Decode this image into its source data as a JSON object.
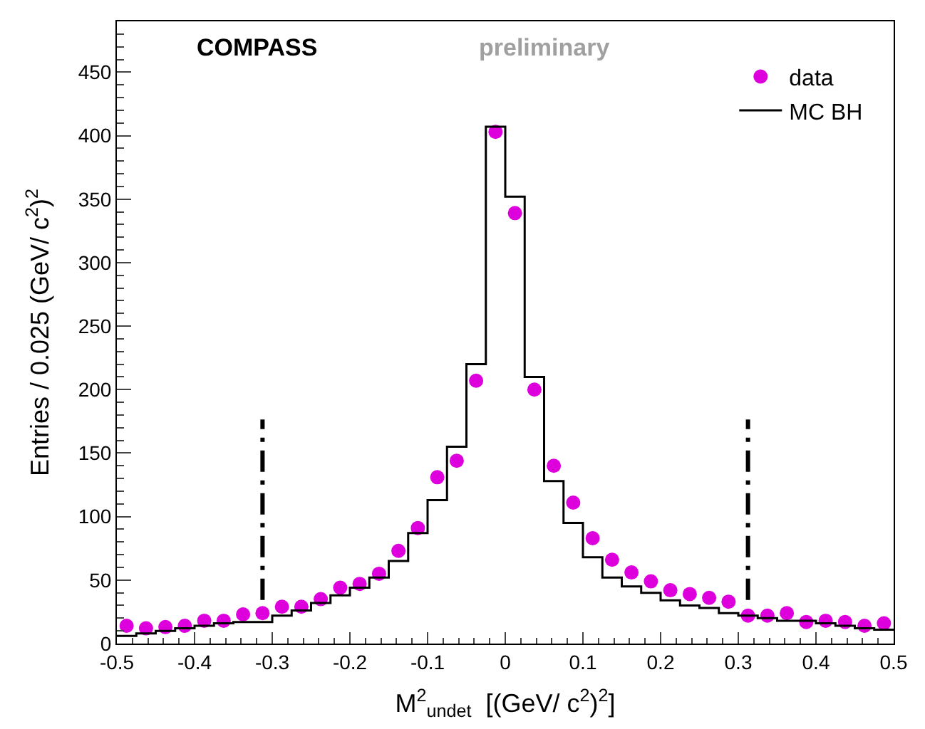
{
  "chart_data": {
    "type": "histogram",
    "xlabel": "M$^{2}$$_{undet}$  [(GeV/ c$^{2}$)$^{2}$]",
    "ylabel": "Entries / 0.025 (GeV/ c$^{2}$)$^{2}$",
    "annotations": [
      "COMPASS",
      "preliminary"
    ],
    "bins": [
      -0.5,
      -0.475,
      -0.45,
      -0.425,
      -0.4,
      -0.375,
      -0.35,
      -0.325,
      -0.3,
      -0.275,
      -0.25,
      -0.225,
      -0.2,
      -0.175,
      -0.15,
      -0.125,
      -0.1,
      -0.075,
      -0.05,
      -0.025,
      0,
      0.025,
      0.05,
      0.075,
      0.1,
      0.125,
      0.15,
      0.175,
      0.2,
      0.225,
      0.25,
      0.275,
      0.3,
      0.325,
      0.35,
      0.375,
      0.4,
      0.425,
      0.45,
      0.475,
      0.5
    ],
    "series": [
      {
        "name": "data",
        "type": "scatter",
        "color": "#dd00dd",
        "marker": "circle",
        "x": [
          -0.4875,
          -0.4625,
          -0.4375,
          -0.4125,
          -0.3875,
          -0.3625,
          -0.3375,
          -0.3125,
          -0.2875,
          -0.2625,
          -0.2375,
          -0.2125,
          -0.1875,
          -0.1625,
          -0.1375,
          -0.1125,
          -0.0875,
          -0.0625,
          -0.0375,
          -0.0125,
          0.0125,
          0.0375,
          0.0625,
          0.0875,
          0.1125,
          0.1375,
          0.1625,
          0.1875,
          0.2125,
          0.2375,
          0.2625,
          0.2875,
          0.3125,
          0.3375,
          0.3625,
          0.3875,
          0.4125,
          0.4375,
          0.4625,
          0.4875
        ],
        "values": [
          14,
          12,
          13,
          14,
          18,
          18,
          23,
          24,
          29,
          29,
          35,
          44,
          47,
          55,
          73,
          91,
          131,
          144,
          207,
          403,
          339,
          200,
          140,
          111,
          83,
          66,
          56,
          49,
          42,
          39,
          36,
          33,
          22,
          22,
          24,
          17,
          18,
          17,
          14,
          16
        ]
      },
      {
        "name": "MC BH",
        "color": "#000000",
        "values": [
          6,
          8,
          10,
          12,
          14,
          16,
          17,
          17,
          22,
          26,
          32,
          38,
          44,
          52,
          65,
          87,
          113,
          155,
          220,
          407,
          352,
          210,
          128,
          95,
          68,
          52,
          45,
          40,
          34,
          30,
          28,
          24,
          22,
          20,
          18,
          18,
          16,
          14,
          12,
          11
        ]
      }
    ],
    "xlim": [
      -0.5,
      0.5
    ],
    "xticks": [
      -0.5,
      -0.4,
      -0.3,
      -0.2,
      -0.1,
      0,
      0.1,
      0.2,
      0.3,
      0.4,
      0.5
    ],
    "ylim": [
      0,
      490
    ],
    "yticks": [
      0,
      50,
      100,
      150,
      200,
      250,
      300,
      350,
      400,
      450
    ],
    "ref_lines": [
      {
        "axis": "x",
        "value": -0.3125,
        "label": null,
        "line_style": "dashed"
      },
      {
        "axis": "x",
        "value": 0.3125,
        "label": null,
        "line_style": "dashed"
      }
    ],
    "legend": "top right"
  }
}
